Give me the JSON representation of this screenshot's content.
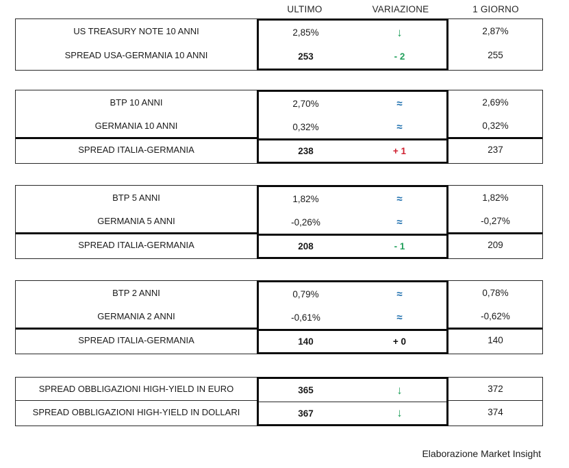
{
  "header": {
    "columns": [
      "ULTIMO",
      "VARIAZIONE",
      "1 GIORNO"
    ]
  },
  "colors": {
    "green": "#22a05c",
    "red": "#cf2030",
    "blue": "#1e6fae",
    "text": "#1a1a1a"
  },
  "icons": {
    "down_arrow": "↓",
    "approx": "≈"
  },
  "blocks": [
    {
      "rows": [
        {
          "label": "US TREASURY NOTE 10 ANNI",
          "ultimo": "2,85%",
          "variazione": "↓",
          "variazione_color": "green",
          "variazione_kind": "arrow",
          "giorno": "2,87%"
        },
        {
          "label": "SPREAD USA-GERMANIA 10 ANNI",
          "ultimo": "253",
          "variazione": "- 2",
          "variazione_color": "green",
          "variazione_kind": "number",
          "giorno": "255"
        }
      ]
    },
    {
      "rows": [
        {
          "label": "BTP 10 ANNI",
          "ultimo": "2,70%",
          "variazione": "≈",
          "variazione_color": "blue",
          "variazione_kind": "approx",
          "giorno": "2,69%"
        },
        {
          "label": "GERMANIA 10 ANNI",
          "ultimo": "0,32%",
          "variazione": "≈",
          "variazione_color": "blue",
          "variazione_kind": "approx",
          "giorno": "0,32%"
        },
        {
          "label": "SPREAD ITALIA-GERMANIA",
          "ultimo": "238",
          "variazione": "+ 1",
          "variazione_color": "red",
          "variazione_kind": "number",
          "giorno": "237"
        }
      ]
    },
    {
      "rows": [
        {
          "label": "BTP 5 ANNI",
          "ultimo": "1,82%",
          "variazione": "≈",
          "variazione_color": "blue",
          "variazione_kind": "approx",
          "giorno": "1,82%"
        },
        {
          "label": "GERMANIA 5 ANNI",
          "ultimo": "-0,26%",
          "variazione": "≈",
          "variazione_color": "blue",
          "variazione_kind": "approx",
          "giorno": "-0,27%"
        },
        {
          "label": "SPREAD ITALIA-GERMANIA",
          "ultimo": "208",
          "variazione": "- 1",
          "variazione_color": "green",
          "variazione_kind": "number",
          "giorno": "209"
        }
      ]
    },
    {
      "rows": [
        {
          "label": "BTP 2 ANNI",
          "ultimo": "0,79%",
          "variazione": "≈",
          "variazione_color": "blue",
          "variazione_kind": "approx",
          "giorno": "0,78%"
        },
        {
          "label": "GERMANIA 2 ANNI",
          "ultimo": "-0,61%",
          "variazione": "≈",
          "variazione_color": "blue",
          "variazione_kind": "approx",
          "giorno": "-0,62%"
        },
        {
          "label": "SPREAD ITALIA-GERMANIA",
          "ultimo": "140",
          "variazione": "+ 0",
          "variazione_color": "black",
          "variazione_kind": "number",
          "giorno": "140"
        }
      ]
    },
    {
      "rows": [
        {
          "label": "SPREAD OBBLIGAZIONI HIGH-YIELD IN EURO",
          "ultimo": "365",
          "variazione": "↓",
          "variazione_color": "green",
          "variazione_kind": "arrow",
          "giorno": "372"
        },
        {
          "label": "SPREAD OBBLIGAZIONI HIGH-YIELD IN DOLLARI",
          "ultimo": "367",
          "variazione": "↓",
          "variazione_color": "green",
          "variazione_kind": "arrow",
          "giorno": "374"
        }
      ]
    }
  ],
  "footer": {
    "credit": "Elaborazione Market Insight"
  }
}
